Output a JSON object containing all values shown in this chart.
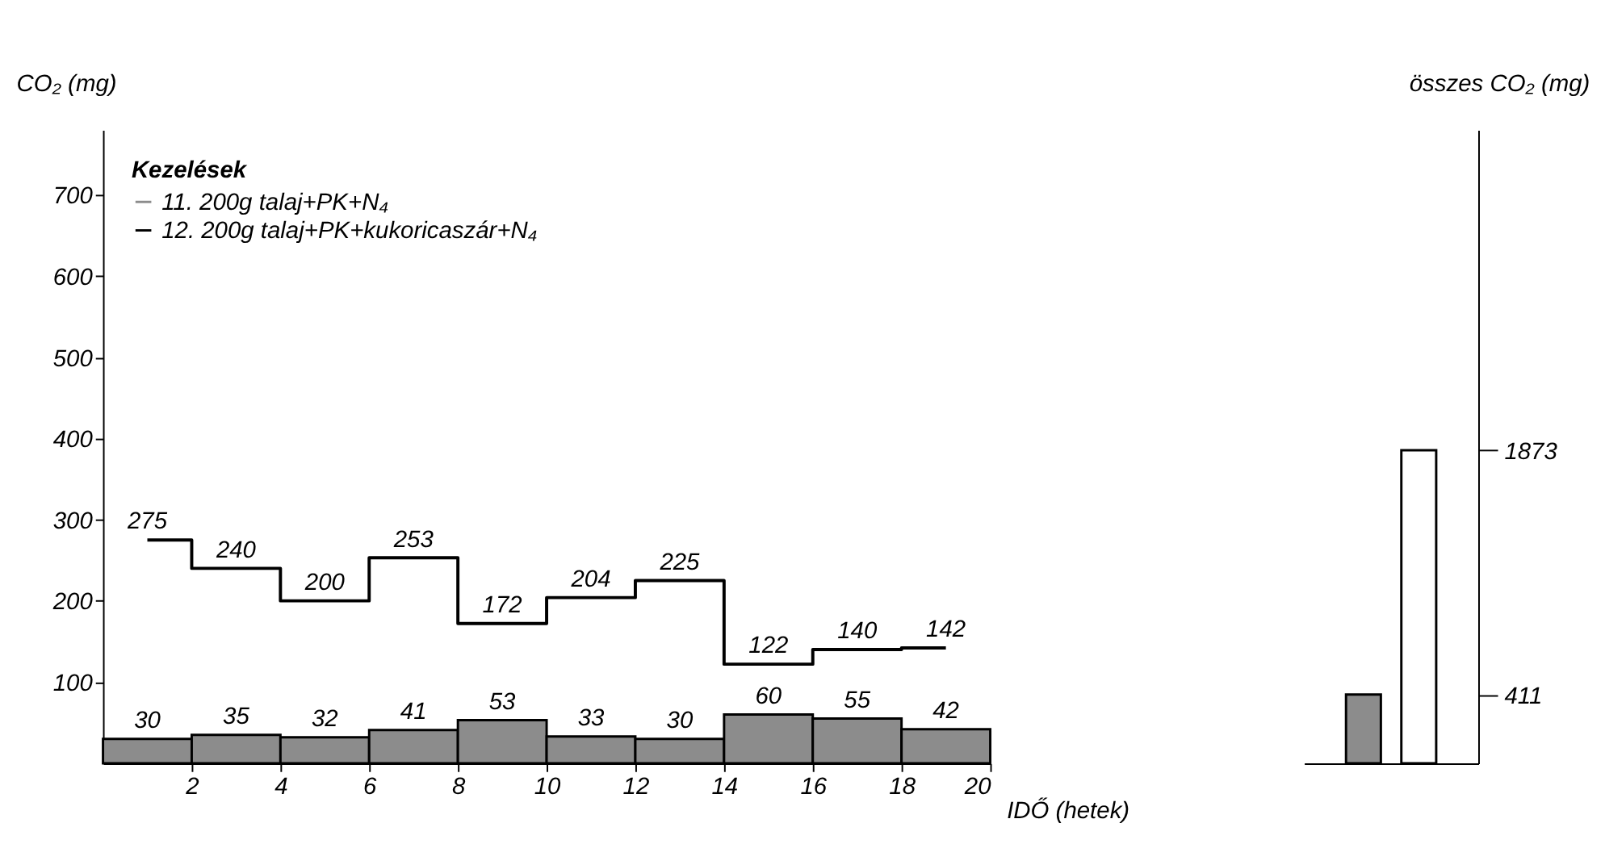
{
  "chart_data": [
    {
      "type": "bar",
      "x": [
        1,
        3,
        5,
        7,
        9,
        11,
        13,
        15,
        17,
        19
      ],
      "xlabel": "IDŐ (hetek)",
      "ylabel": "CO₂ (mg)",
      "legend_title": "Kezelések",
      "legend": "top left",
      "xlim": [
        0,
        20
      ],
      "xticks": [
        2,
        4,
        6,
        8,
        10,
        12,
        14,
        16,
        18,
        20
      ],
      "ylim": [
        0,
        780
      ],
      "yticks": [
        100,
        200,
        300,
        400,
        500,
        600,
        700
      ],
      "grid": false,
      "data_labels": true,
      "series": [
        {
          "name": "11. 200g talaj+PK+N₄",
          "color": "#8c8c8c",
          "values": [
            30,
            35,
            32,
            41,
            53,
            33,
            30,
            60,
            55,
            42
          ]
        },
        {
          "name": "12. 200g talaj+PK+kukoricaszár+N₄",
          "type": "step",
          "color": "#000000",
          "values": [
            275,
            240,
            200,
            253,
            172,
            204,
            225,
            122,
            140,
            142
          ]
        }
      ]
    },
    {
      "type": "bar",
      "categories": [
        null,
        null
      ],
      "ylabel": "összes CO₂ (mg)",
      "ylim": [
        0,
        3790
      ],
      "yticks": [
        411,
        1873
      ],
      "grid": false,
      "series": [
        {
          "colors": [
            "#8c8c8c",
            "#ffffff"
          ],
          "values": [
            411,
            1873
          ]
        }
      ]
    }
  ]
}
